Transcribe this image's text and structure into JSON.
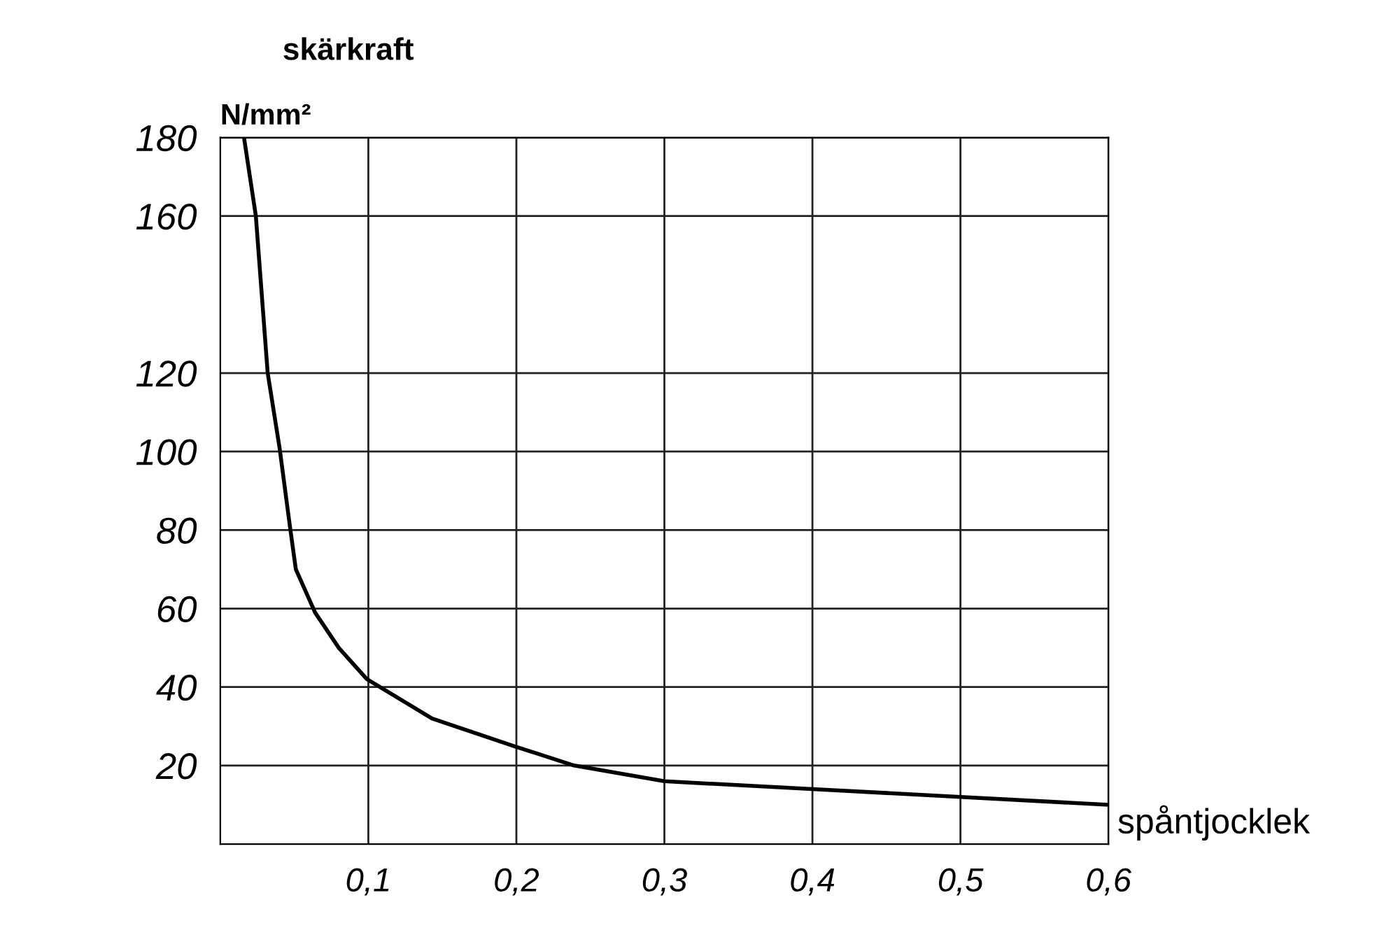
{
  "chart_data": {
    "type": "line",
    "title": "skärkraft",
    "ylabel": "N/mm²",
    "xlabel": "spåntjocklek",
    "x": [
      0.016,
      0.024,
      0.032,
      0.04,
      0.047,
      0.051,
      0.064,
      0.08,
      0.099,
      0.143,
      0.198,
      0.239,
      0.3,
      0.4,
      0.5,
      0.6
    ],
    "series": [
      {
        "color": "#000000",
        "values": [
          180,
          160,
          120,
          101,
          81,
          70,
          59,
          50,
          42,
          32,
          25,
          20,
          16,
          14,
          12,
          10
        ]
      }
    ],
    "xlim": [
      0,
      0.6
    ],
    "ylim": [
      0,
      180
    ],
    "xticks": [
      {
        "value": 0.1,
        "label": "0,1"
      },
      {
        "value": 0.2,
        "label": "0,2"
      },
      {
        "value": 0.3,
        "label": "0,3"
      },
      {
        "value": 0.4,
        "label": "0,4"
      },
      {
        "value": 0.5,
        "label": "0,5"
      },
      {
        "value": 0.6,
        "label": "0,6"
      }
    ],
    "yticks": [
      20,
      40,
      60,
      80,
      100,
      120,
      160,
      180
    ],
    "grid": true,
    "marker": "none",
    "line_style": "solid"
  }
}
